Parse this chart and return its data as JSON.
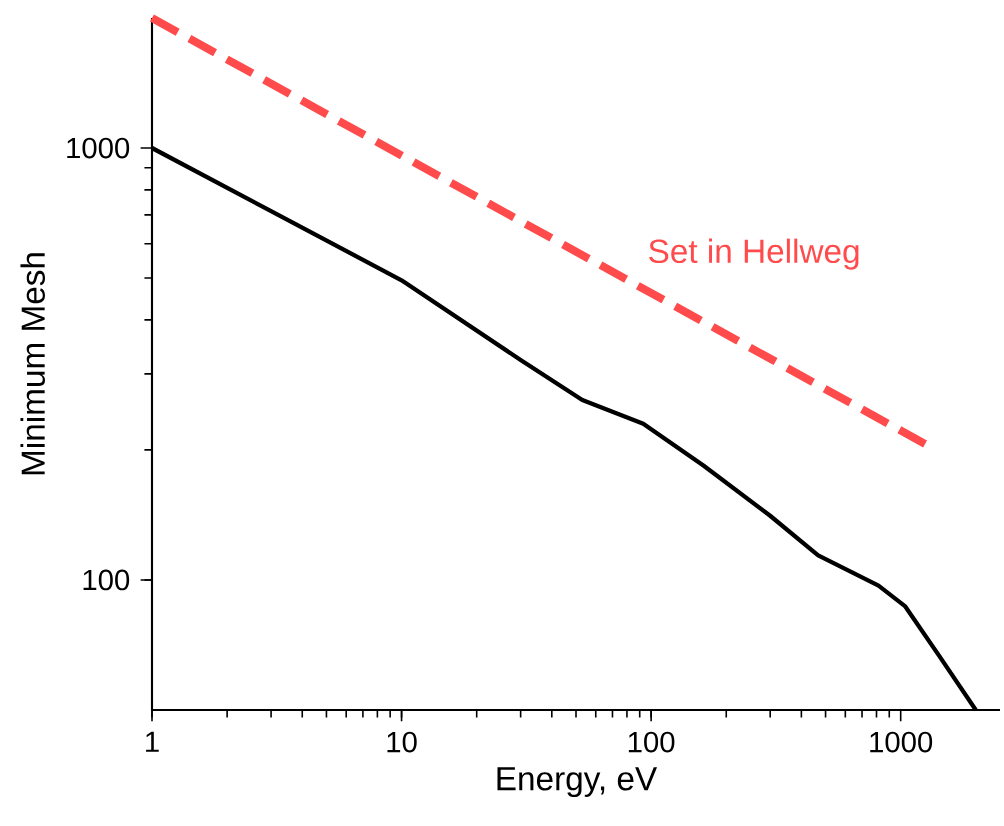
{
  "chart_data": {
    "type": "line",
    "xlabel": "Energy, eV",
    "ylabel": "Minimum Mesh",
    "log": "xy",
    "xlim": [
      1,
      2500
    ],
    "ylim": [
      50,
      2000
    ],
    "xticks": [
      1,
      10,
      100,
      1000
    ],
    "yticks": [
      100,
      1000
    ],
    "grid": false,
    "legend": false,
    "marker": "none",
    "series": [
      {
        "color": "#000000",
        "line_style": "solid",
        "x": [
          1,
          3,
          10,
          30,
          53,
          93,
          162,
          299,
          467,
          815,
          1040,
          1420,
          2000
        ],
        "values": [
          1000,
          714,
          494,
          323,
          261,
          230,
          184,
          141,
          114,
          97,
          87,
          67,
          50
        ]
      },
      {
        "name": "Set in Hellweg",
        "color": "#ff4b4b",
        "line_style": "dashed",
        "x": [
          1,
          1300
        ],
        "values": [
          2000,
          204
        ]
      }
    ]
  }
}
